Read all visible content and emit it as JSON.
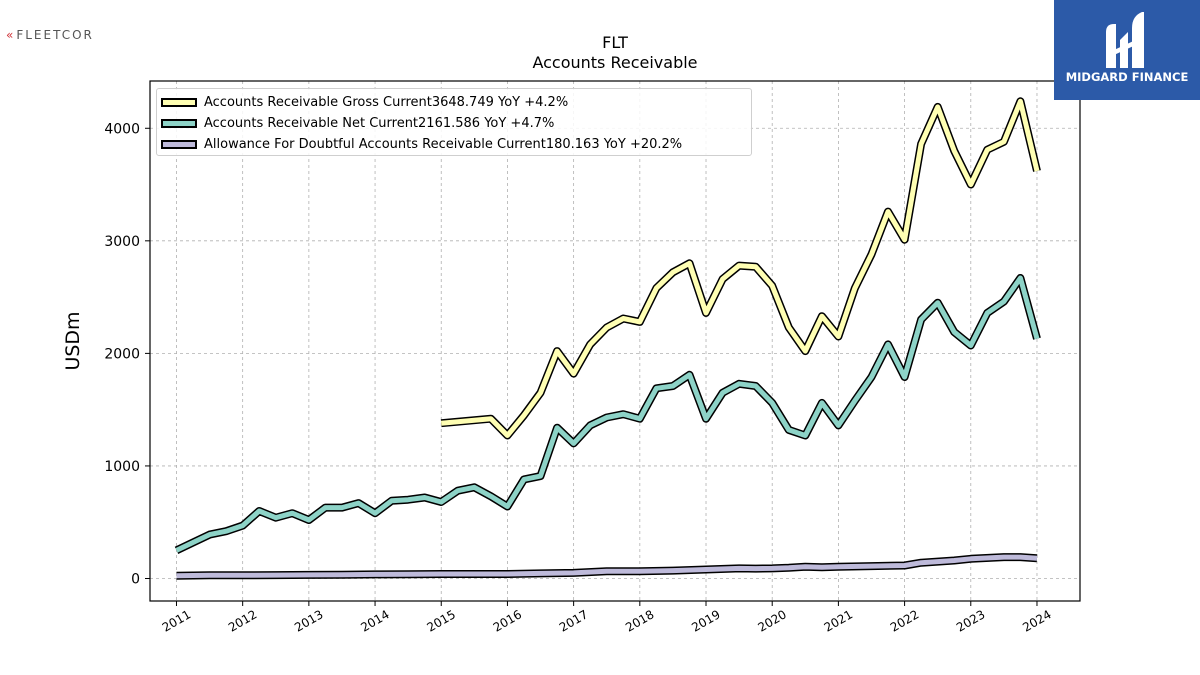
{
  "brand": {
    "left_logo": "FLEETCOR",
    "left_mark": "«",
    "right_logo": "MIDGARD FINANCE",
    "right_logo_color": "#2c5aa8"
  },
  "chart_data": {
    "type": "line",
    "title": "FLT",
    "subtitle": "Accounts Receivable",
    "ylabel": "USDm",
    "xlabel": "",
    "ylim": [
      -200,
      4420
    ],
    "xlim": [
      2010.6,
      2024.65
    ],
    "yticks": [
      0,
      1000,
      2000,
      3000,
      4000
    ],
    "xticks": [
      "2011",
      "2012",
      "2013",
      "2014",
      "2015",
      "2016",
      "2017",
      "2018",
      "2019",
      "2020",
      "2021",
      "2022",
      "2023",
      "2024"
    ],
    "grid": true,
    "legend_position": "top-left",
    "series": [
      {
        "name": "Accounts Receivable Gross Current",
        "legend_values": "3648.749 YoY +4.2%",
        "color": "#ffffb3",
        "points": [
          [
            2015.0,
            1380
          ],
          [
            2015.75,
            1420
          ],
          [
            2016.0,
            1270
          ],
          [
            2016.25,
            1450
          ],
          [
            2016.5,
            1650
          ],
          [
            2016.75,
            2020
          ],
          [
            2017.0,
            1820
          ],
          [
            2017.25,
            2080
          ],
          [
            2017.5,
            2230
          ],
          [
            2017.75,
            2310
          ],
          [
            2018.0,
            2280
          ],
          [
            2018.25,
            2580
          ],
          [
            2018.5,
            2720
          ],
          [
            2018.75,
            2800
          ],
          [
            2019.0,
            2360
          ],
          [
            2019.25,
            2660
          ],
          [
            2019.5,
            2780
          ],
          [
            2019.75,
            2770
          ],
          [
            2020.0,
            2600
          ],
          [
            2020.25,
            2230
          ],
          [
            2020.5,
            2020
          ],
          [
            2020.75,
            2330
          ],
          [
            2021.0,
            2150
          ],
          [
            2021.25,
            2580
          ],
          [
            2021.5,
            2880
          ],
          [
            2021.75,
            3260
          ],
          [
            2022.0,
            3010
          ],
          [
            2022.25,
            3860
          ],
          [
            2022.5,
            4190
          ],
          [
            2022.75,
            3800
          ],
          [
            2023.0,
            3500
          ],
          [
            2023.25,
            3810
          ],
          [
            2023.5,
            3880
          ],
          [
            2023.75,
            4240
          ],
          [
            2024.0,
            3620
          ]
        ]
      },
      {
        "name": "Accounts Receivable Net Current",
        "legend_values": "2161.586 YoY +4.7%",
        "color": "#8dd3c7",
        "points": [
          [
            2011.0,
            250
          ],
          [
            2011.25,
            320
          ],
          [
            2011.5,
            390
          ],
          [
            2011.75,
            420
          ],
          [
            2012.0,
            470
          ],
          [
            2012.25,
            600
          ],
          [
            2012.5,
            540
          ],
          [
            2012.75,
            580
          ],
          [
            2013.0,
            520
          ],
          [
            2013.25,
            630
          ],
          [
            2013.5,
            630
          ],
          [
            2013.75,
            670
          ],
          [
            2014.0,
            580
          ],
          [
            2014.25,
            690
          ],
          [
            2014.5,
            700
          ],
          [
            2014.75,
            720
          ],
          [
            2015.0,
            680
          ],
          [
            2015.25,
            780
          ],
          [
            2015.5,
            810
          ],
          [
            2015.75,
            730
          ],
          [
            2016.0,
            640
          ],
          [
            2016.25,
            880
          ],
          [
            2016.5,
            910
          ],
          [
            2016.75,
            1340
          ],
          [
            2017.0,
            1200
          ],
          [
            2017.25,
            1360
          ],
          [
            2017.5,
            1430
          ],
          [
            2017.75,
            1460
          ],
          [
            2018.0,
            1420
          ],
          [
            2018.25,
            1690
          ],
          [
            2018.5,
            1710
          ],
          [
            2018.75,
            1810
          ],
          [
            2019.0,
            1420
          ],
          [
            2019.25,
            1650
          ],
          [
            2019.5,
            1730
          ],
          [
            2019.75,
            1710
          ],
          [
            2020.0,
            1560
          ],
          [
            2020.25,
            1320
          ],
          [
            2020.5,
            1270
          ],
          [
            2020.75,
            1560
          ],
          [
            2021.0,
            1360
          ],
          [
            2021.25,
            1580
          ],
          [
            2021.5,
            1790
          ],
          [
            2021.75,
            2080
          ],
          [
            2022.0,
            1790
          ],
          [
            2022.25,
            2300
          ],
          [
            2022.5,
            2450
          ],
          [
            2022.75,
            2190
          ],
          [
            2023.0,
            2070
          ],
          [
            2023.25,
            2360
          ],
          [
            2023.5,
            2460
          ],
          [
            2023.75,
            2670
          ],
          [
            2024.0,
            2130
          ]
        ]
      },
      {
        "name": "Allowance For Doubtful Accounts Receivable Current",
        "legend_values": "180.163 YoY +20.2%",
        "color": "#bebada",
        "points": [
          [
            2011.0,
            25
          ],
          [
            2011.5,
            28
          ],
          [
            2012.0,
            28
          ],
          [
            2012.5,
            30
          ],
          [
            2013.0,
            32
          ],
          [
            2013.5,
            34
          ],
          [
            2014.0,
            36
          ],
          [
            2014.5,
            38
          ],
          [
            2015.0,
            40
          ],
          [
            2015.5,
            40
          ],
          [
            2016.0,
            40
          ],
          [
            2016.5,
            45
          ],
          [
            2017.0,
            50
          ],
          [
            2017.5,
            65
          ],
          [
            2018.0,
            65
          ],
          [
            2018.5,
            70
          ],
          [
            2019.0,
            80
          ],
          [
            2019.5,
            90
          ],
          [
            2019.75,
            88
          ],
          [
            2020.0,
            90
          ],
          [
            2020.25,
            95
          ],
          [
            2020.5,
            105
          ],
          [
            2020.75,
            100
          ],
          [
            2021.0,
            105
          ],
          [
            2021.5,
            110
          ],
          [
            2022.0,
            115
          ],
          [
            2022.25,
            140
          ],
          [
            2022.75,
            160
          ],
          [
            2023.0,
            175
          ],
          [
            2023.5,
            190
          ],
          [
            2023.75,
            190
          ],
          [
            2024.0,
            180
          ]
        ]
      }
    ]
  }
}
